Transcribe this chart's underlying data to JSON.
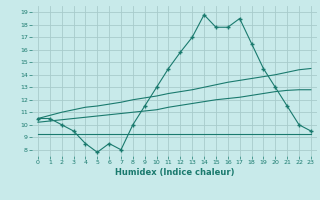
{
  "x": [
    0,
    1,
    2,
    3,
    4,
    5,
    6,
    7,
    8,
    9,
    10,
    11,
    12,
    13,
    14,
    15,
    16,
    17,
    18,
    19,
    20,
    21,
    22,
    23
  ],
  "y_main": [
    10.5,
    10.5,
    10.0,
    9.5,
    8.5,
    7.8,
    8.5,
    8.0,
    10.0,
    11.5,
    13.0,
    14.5,
    15.8,
    17.0,
    18.8,
    17.8,
    17.8,
    18.5,
    16.5,
    14.5,
    13.0,
    11.5,
    10.0,
    9.5
  ],
  "y_upper": [
    10.5,
    10.75,
    11.0,
    11.2,
    11.4,
    11.5,
    11.65,
    11.8,
    12.0,
    12.15,
    12.3,
    12.5,
    12.65,
    12.8,
    13.0,
    13.2,
    13.4,
    13.55,
    13.7,
    13.85,
    14.0,
    14.2,
    14.4,
    14.5
  ],
  "y_middle": [
    10.2,
    10.3,
    10.4,
    10.5,
    10.6,
    10.7,
    10.8,
    10.9,
    11.0,
    11.1,
    11.2,
    11.4,
    11.55,
    11.7,
    11.85,
    12.0,
    12.1,
    12.2,
    12.35,
    12.5,
    12.65,
    12.75,
    12.8,
    12.8
  ],
  "y_flat": [
    9.3,
    9.3,
    9.3,
    9.3,
    9.3,
    9.3,
    9.3,
    9.3,
    9.3,
    9.3,
    9.3,
    9.3,
    9.3,
    9.3,
    9.3,
    9.3,
    9.3,
    9.3,
    9.3,
    9.3,
    9.3,
    9.3,
    9.3,
    9.3
  ],
  "line_color": "#1a7a6e",
  "bg_color": "#c8eaea",
  "grid_color": "#a8cccc",
  "xlabel": "Humidex (Indice chaleur)",
  "ylim": [
    7.5,
    19.5
  ],
  "xlim": [
    -0.5,
    23.5
  ],
  "yticks": [
    8,
    9,
    10,
    11,
    12,
    13,
    14,
    15,
    16,
    17,
    18,
    19
  ],
  "xticks": [
    0,
    1,
    2,
    3,
    4,
    5,
    6,
    7,
    8,
    9,
    10,
    11,
    12,
    13,
    14,
    15,
    16,
    17,
    18,
    19,
    20,
    21,
    22,
    23
  ]
}
